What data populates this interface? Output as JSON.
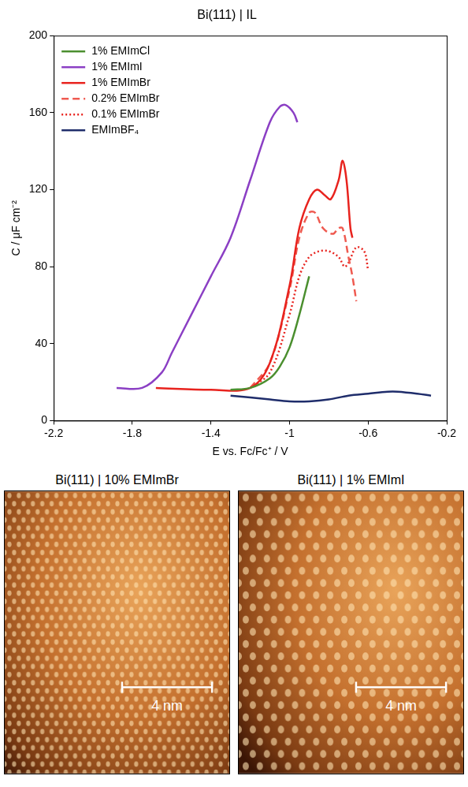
{
  "chart_data": {
    "type": "line",
    "title": "Bi(111) | IL",
    "x_label": "E vs. Fc/Fc⁺ / V",
    "y_label": "C / μF cm⁻²",
    "xlim": [
      -2.2,
      -0.2
    ],
    "xticks": [
      -2.2,
      -1.8,
      -1.4,
      -1,
      -0.6,
      -0.2
    ],
    "ylim": [
      0,
      200
    ],
    "yticks": [
      0,
      40,
      80,
      120,
      160,
      200
    ],
    "grid": false,
    "legend": "top-left",
    "marker": "none",
    "series": [
      {
        "name": "1% EMImCl",
        "color": "#4b8f2f",
        "line_style": "solid",
        "x": [
          -1.3,
          -1.2,
          -1.1,
          -1.05,
          -1.0,
          -0.95,
          -0.9
        ],
        "values": [
          16,
          17,
          22,
          28,
          38,
          55,
          75
        ]
      },
      {
        "name": "1% EMImI",
        "color": "#8b3fc4",
        "line_style": "solid",
        "x": [
          -1.88,
          -1.75,
          -1.65,
          -1.6,
          -1.5,
          -1.4,
          -1.3,
          -1.2,
          -1.1,
          -1.05,
          -1.02,
          -0.98,
          -0.96
        ],
        "values": [
          17,
          17,
          25,
          35,
          55,
          75,
          95,
          125,
          155,
          163,
          164,
          160,
          155
        ]
      },
      {
        "name": "1% EMImBr",
        "color": "#e8231e",
        "line_style": "solid",
        "x": [
          -1.68,
          -1.4,
          -1.2,
          -1.1,
          -1.0,
          -0.95,
          -0.9,
          -0.86,
          -0.82,
          -0.79,
          -0.75,
          -0.73,
          -0.71,
          -0.69,
          -0.68
        ],
        "values": [
          17,
          16,
          17,
          30,
          70,
          100,
          115,
          120,
          117,
          115,
          125,
          135,
          125,
          100,
          95
        ]
      },
      {
        "name": "0.2% EMImBr",
        "color": "#ef5a50",
        "line_style": "dashed",
        "x": [
          -1.2,
          -1.1,
          -1.0,
          -0.95,
          -0.9,
          -0.87,
          -0.83,
          -0.78,
          -0.75,
          -0.73,
          -0.7,
          -0.68,
          -0.66
        ],
        "values": [
          17,
          30,
          68,
          95,
          108,
          108,
          100,
          97,
          100,
          100,
          85,
          75,
          62
        ]
      },
      {
        "name": "0.1% EMImBr",
        "color": "#e8231e",
        "line_style": "dotted",
        "x": [
          -1.2,
          -1.1,
          -1.0,
          -0.95,
          -0.9,
          -0.85,
          -0.8,
          -0.75,
          -0.72,
          -0.7,
          -0.66,
          -0.62,
          -0.6
        ],
        "values": [
          17,
          25,
          55,
          75,
          85,
          88,
          88,
          85,
          80,
          82,
          90,
          88,
          78
        ]
      },
      {
        "name": "EMImBF₄",
        "color": "#1f2d6b",
        "line_style": "solid",
        "x": [
          -1.3,
          -1.1,
          -1.0,
          -0.9,
          -0.8,
          -0.7,
          -0.6,
          -0.5,
          -0.45,
          -0.35,
          -0.28
        ],
        "values": [
          13,
          11,
          10,
          10,
          11,
          13,
          14,
          15,
          15,
          14,
          13
        ]
      }
    ]
  },
  "panels": [
    {
      "title": "Bi(111) | 10% EMImBr",
      "scale_bar": "4 nm"
    },
    {
      "title": "Bi(111) | 1% EMImI",
      "scale_bar": "4 nm"
    }
  ]
}
